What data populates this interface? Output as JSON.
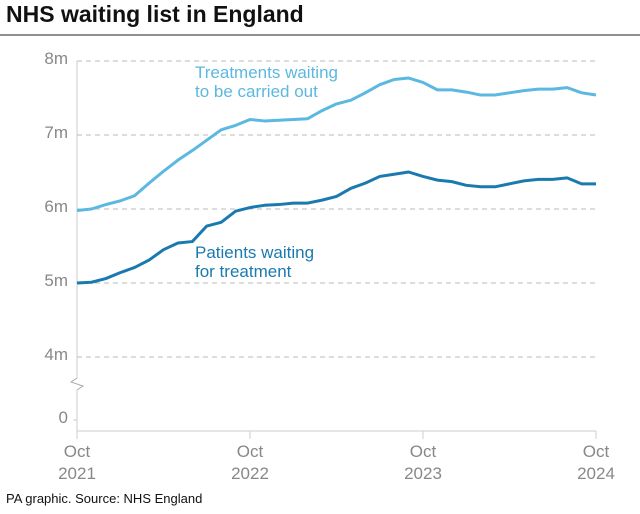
{
  "chart_data": {
    "type": "line",
    "title": "NHS waiting list in England",
    "source": "PA graphic. Source: NHS England",
    "x": [
      "2021-10",
      "2021-11",
      "2021-12",
      "2022-01",
      "2022-02",
      "2022-03",
      "2022-04",
      "2022-05",
      "2022-06",
      "2022-07",
      "2022-08",
      "2022-09",
      "2022-10",
      "2022-11",
      "2022-12",
      "2023-01",
      "2023-02",
      "2023-03",
      "2023-04",
      "2023-05",
      "2023-06",
      "2023-07",
      "2023-08",
      "2023-09",
      "2023-10",
      "2023-11",
      "2023-12",
      "2024-01",
      "2024-02",
      "2024-03",
      "2024-04",
      "2024-05",
      "2024-06",
      "2024-07",
      "2024-08",
      "2024-09",
      "2024-10"
    ],
    "series": [
      {
        "name": "Treatments waiting\nto be carried out",
        "color": "#5bb8e0",
        "values": [
          5.98,
          6.0,
          6.06,
          6.11,
          6.18,
          6.35,
          6.51,
          6.66,
          6.79,
          6.93,
          7.07,
          7.13,
          7.21,
          7.19,
          7.2,
          7.21,
          7.22,
          7.33,
          7.42,
          7.47,
          7.57,
          7.68,
          7.75,
          7.77,
          7.71,
          7.61,
          7.61,
          7.58,
          7.54,
          7.54,
          7.57,
          7.6,
          7.62,
          7.62,
          7.64,
          7.57,
          7.54
        ]
      },
      {
        "name": "Patients waiting\nfor treatment",
        "color": "#1a7ab0",
        "values": [
          5.0,
          5.01,
          5.06,
          5.14,
          5.21,
          5.31,
          5.45,
          5.54,
          5.56,
          5.77,
          5.82,
          5.97,
          6.02,
          6.05,
          6.06,
          6.08,
          6.08,
          6.12,
          6.17,
          6.28,
          6.35,
          6.44,
          6.47,
          6.5,
          6.44,
          6.39,
          6.37,
          6.32,
          6.3,
          6.3,
          6.34,
          6.38,
          6.4,
          6.4,
          6.42,
          6.34,
          6.34
        ]
      }
    ],
    "ylim": [
      3,
      8
    ],
    "yticks": [
      {
        "value": 0,
        "label": "0"
      },
      {
        "value": 4,
        "label": "4m"
      },
      {
        "value": 5,
        "label": "5m"
      },
      {
        "value": 6,
        "label": "6m"
      },
      {
        "value": 7,
        "label": "7m"
      },
      {
        "value": 8,
        "label": "8m"
      }
    ],
    "axis_break": true,
    "xticks": [
      {
        "value": "2021-10",
        "label": "Oct\n2021"
      },
      {
        "value": "2022-10",
        "label": "Oct\n2022"
      },
      {
        "value": "2023-10",
        "label": "Oct\n2023"
      },
      {
        "value": "2024-10",
        "label": "Oct\n2024"
      }
    ],
    "grid": true
  }
}
